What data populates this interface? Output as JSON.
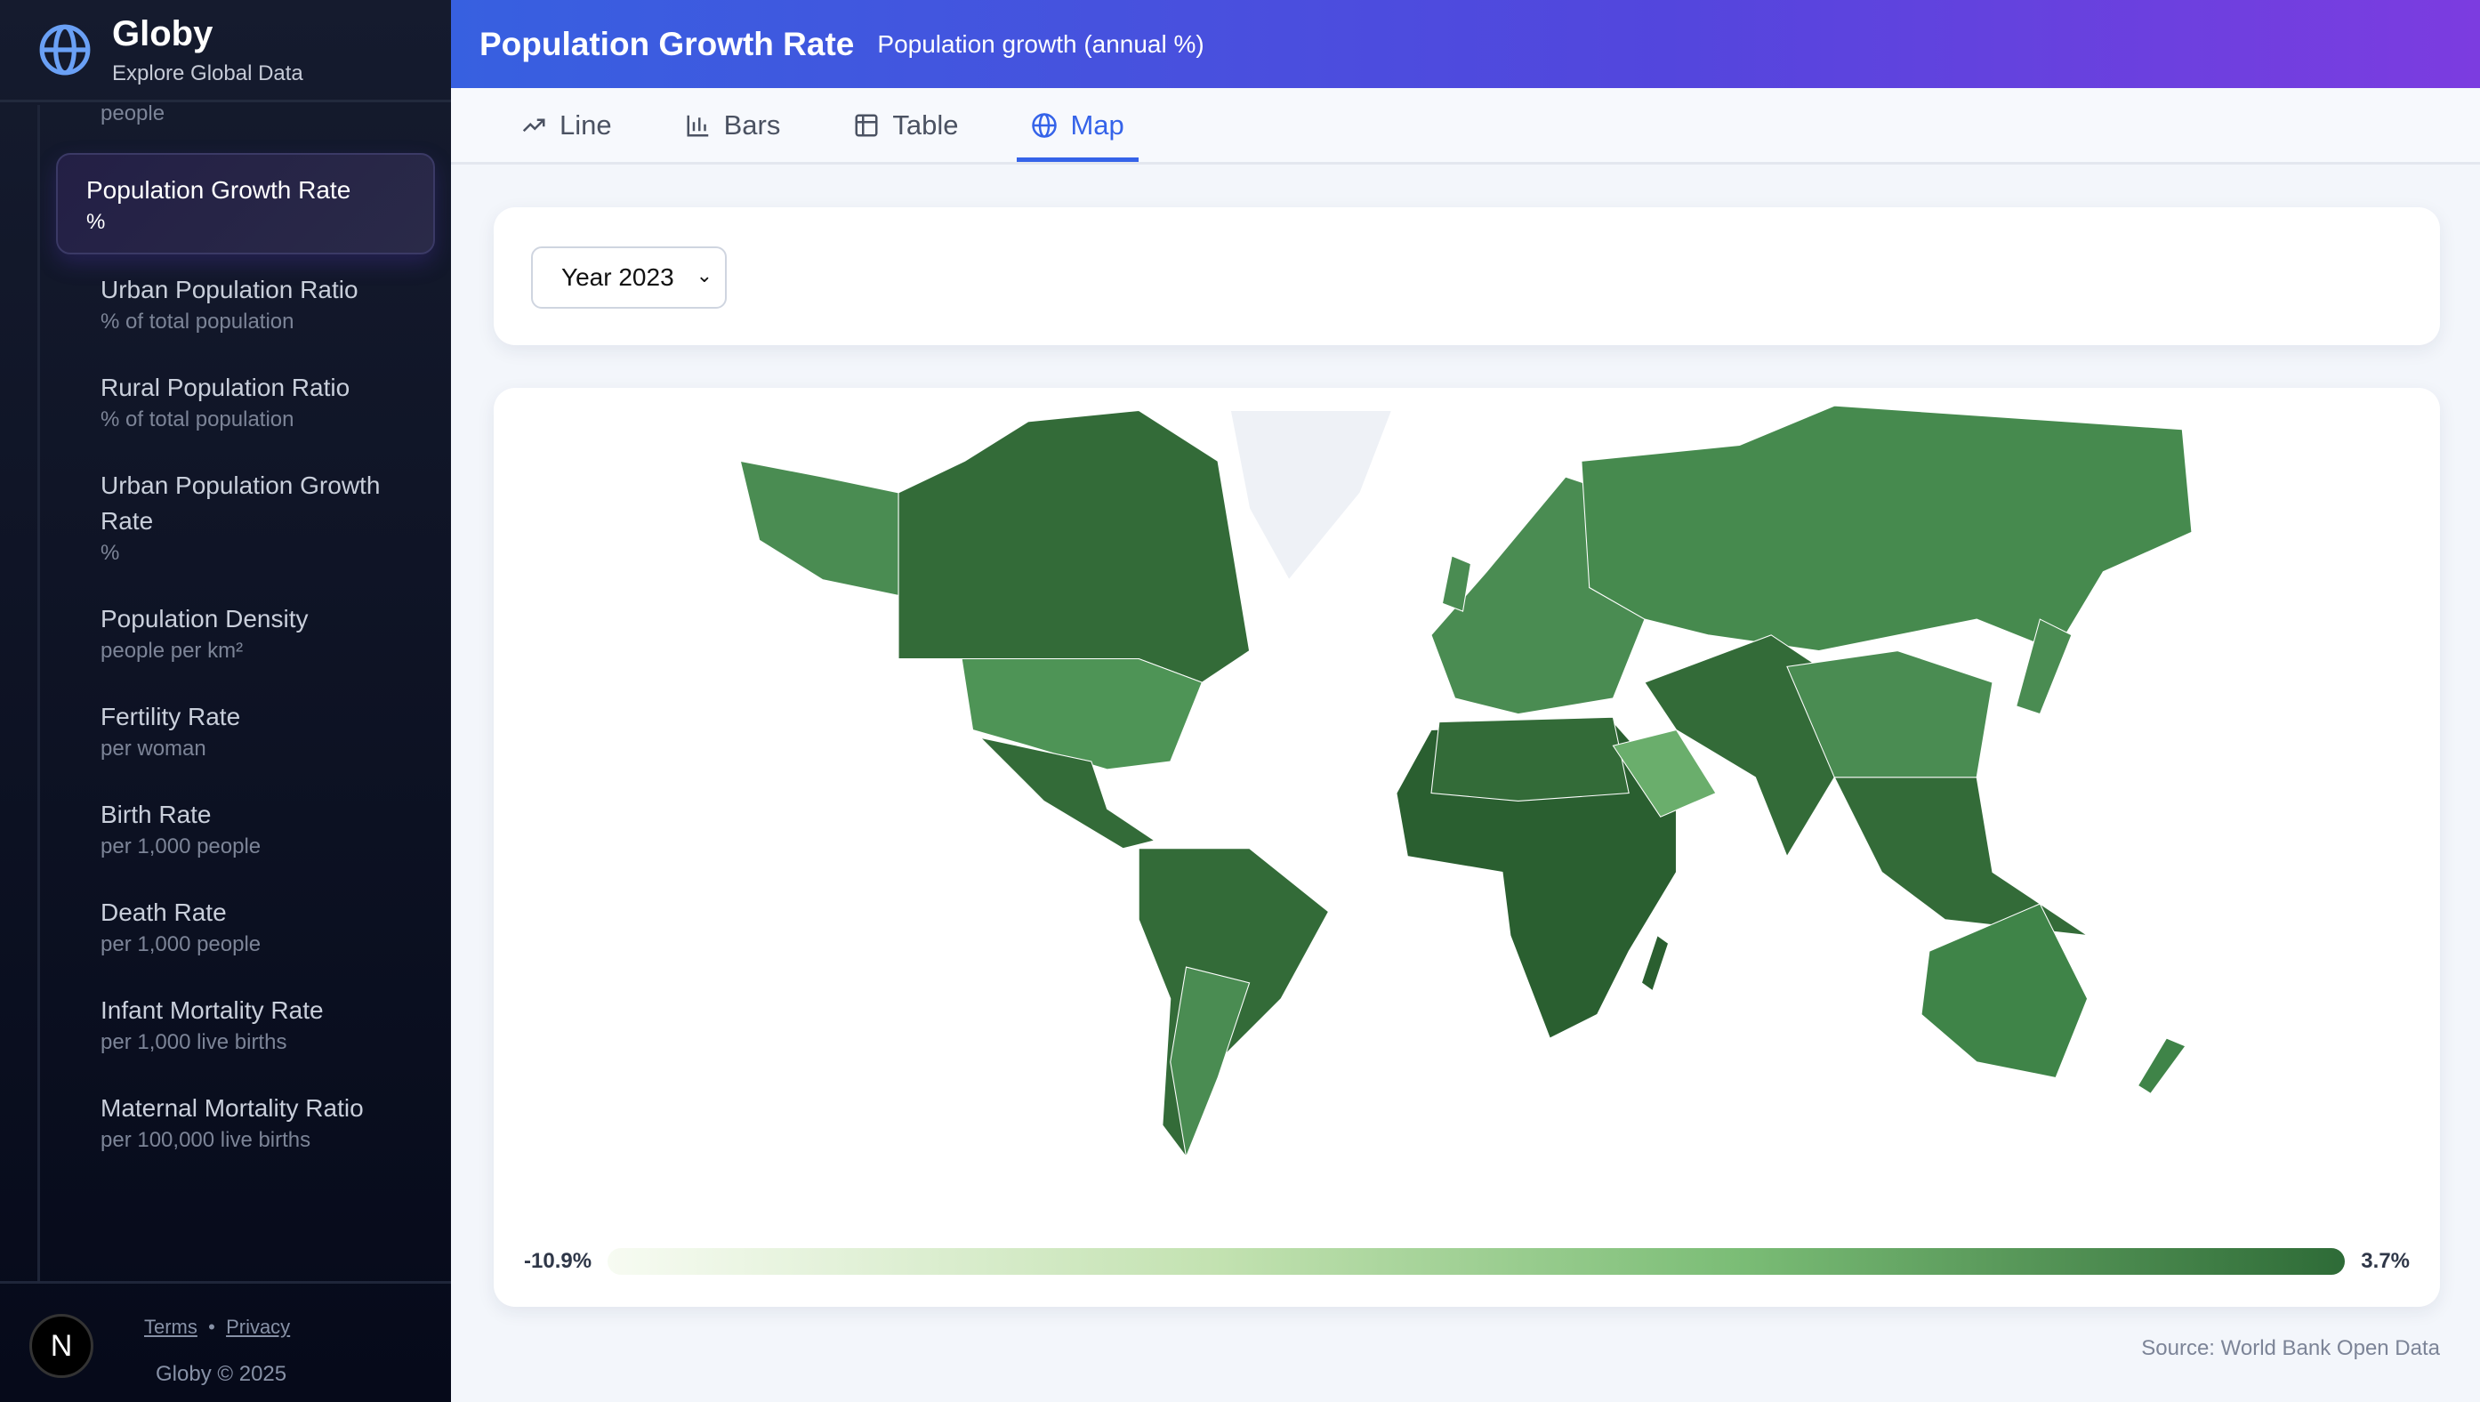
{
  "brand": {
    "title": "Globy",
    "subtitle": "Explore Global Data"
  },
  "sidebar": {
    "partial_unit": "people",
    "items": [
      {
        "label": "Population Growth Rate",
        "unit": "%",
        "active": true
      },
      {
        "label": "Urban Population Ratio",
        "unit": "% of total population"
      },
      {
        "label": "Rural Population Ratio",
        "unit": "% of total population"
      },
      {
        "label": "Urban Population Growth Rate",
        "unit": "%"
      },
      {
        "label": "Population Density",
        "unit": "people per km²"
      },
      {
        "label": "Fertility Rate",
        "unit": "per woman"
      },
      {
        "label": "Birth Rate",
        "unit": "per 1,000 people"
      },
      {
        "label": "Death Rate",
        "unit": "per 1,000 people"
      },
      {
        "label": "Infant Mortality Rate",
        "unit": "per 1,000 live births"
      },
      {
        "label": "Maternal Mortality Ratio",
        "unit": "per 100,000 live births"
      }
    ]
  },
  "footer": {
    "logo": "N",
    "terms": "Terms",
    "sep": "•",
    "privacy": "Privacy",
    "copyright": "Globy © 2025"
  },
  "header": {
    "title": "Population Growth Rate",
    "subtitle": "Population growth (annual %)"
  },
  "tabs": [
    {
      "label": "Line",
      "icon": "trend-icon"
    },
    {
      "label": "Bars",
      "icon": "bar-chart-icon"
    },
    {
      "label": "Table",
      "icon": "table-icon"
    },
    {
      "label": "Map",
      "icon": "globe-icon",
      "active": true
    }
  ],
  "year_select": {
    "value": "Year 2023"
  },
  "map": {
    "legend_min": "-10.9%",
    "legend_max": "3.7%",
    "colors": {
      "low": "#f7fbf2",
      "high": "#2e6b37"
    }
  },
  "source": "Source: World Bank Open Data"
}
